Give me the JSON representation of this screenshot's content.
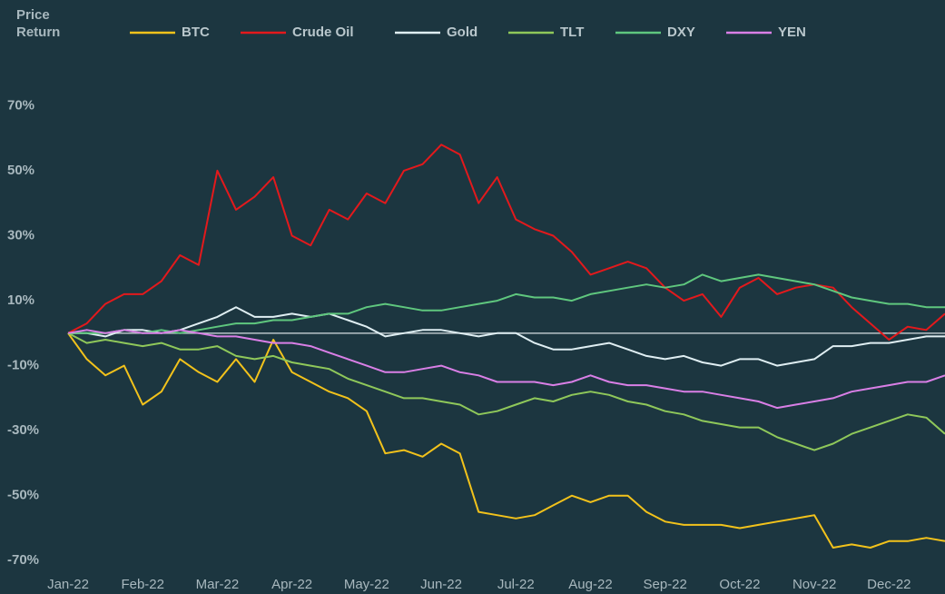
{
  "chart_data": {
    "type": "line",
    "title": "Price Return",
    "categories": [
      "Jan-22",
      null,
      null,
      null,
      "Feb-22",
      null,
      null,
      null,
      "Mar-22",
      null,
      null,
      null,
      "Apr-22",
      null,
      null,
      null,
      "May-22",
      null,
      null,
      null,
      "Jun-22",
      null,
      null,
      null,
      "Jul-22",
      null,
      null,
      null,
      "Aug-22",
      null,
      null,
      null,
      "Sep-22",
      null,
      null,
      null,
      "Oct-22",
      null,
      null,
      null,
      "Nov-22",
      null,
      null,
      null,
      "Dec-22",
      null,
      null,
      null
    ],
    "series": [
      {
        "name": "BTC",
        "color": "#f2c21b",
        "values": [
          0,
          -8,
          -13,
          -10,
          -22,
          -18,
          -8,
          -12,
          -15,
          -8,
          -15,
          -2,
          -12,
          -15,
          -18,
          -20,
          -24,
          -37,
          -36,
          -38,
          -34,
          -37,
          -55,
          -56,
          -57,
          -56,
          -53,
          -50,
          -52,
          -50,
          -50,
          -55,
          -58,
          -59,
          -59,
          -59,
          -60,
          -59,
          -58,
          -57,
          -56,
          -66,
          -65,
          -66,
          -64,
          -64,
          -63,
          -64
        ]
      },
      {
        "name": "Crude Oil",
        "color": "#e3191c",
        "values": [
          0,
          3,
          9,
          12,
          12,
          16,
          24,
          21,
          50,
          38,
          42,
          48,
          30,
          27,
          38,
          35,
          43,
          40,
          50,
          52,
          58,
          55,
          40,
          48,
          35,
          32,
          30,
          25,
          18,
          20,
          22,
          20,
          14,
          10,
          12,
          5,
          14,
          17,
          12,
          14,
          15,
          14,
          8,
          3,
          -2,
          2,
          1,
          6
        ]
      },
      {
        "name": "Gold",
        "color": "#dfeef2",
        "values": [
          0,
          0,
          -1,
          1,
          1,
          0,
          1,
          3,
          5,
          8,
          5,
          5,
          6,
          5,
          6,
          4,
          2,
          -1,
          0,
          1,
          1,
          0,
          -1,
          0,
          0,
          -3,
          -5,
          -5,
          -4,
          -3,
          -5,
          -7,
          -8,
          -7,
          -9,
          -10,
          -8,
          -8,
          -10,
          -9,
          -8,
          -4,
          -4,
          -3,
          -3,
          -2,
          -1,
          -1
        ]
      },
      {
        "name": "TLT",
        "color": "#8fc85a",
        "values": [
          0,
          -3,
          -2,
          -3,
          -4,
          -3,
          -5,
          -5,
          -4,
          -7,
          -8,
          -7,
          -9,
          -10,
          -11,
          -14,
          -16,
          -18,
          -20,
          -20,
          -21,
          -22,
          -25,
          -24,
          -22,
          -20,
          -21,
          -19,
          -18,
          -19,
          -21,
          -22,
          -24,
          -25,
          -27,
          -28,
          -29,
          -29,
          -32,
          -34,
          -36,
          -34,
          -31,
          -29,
          -27,
          -25,
          -26,
          -31
        ]
      },
      {
        "name": "DXY",
        "color": "#5fc77e",
        "values": [
          0,
          0,
          0,
          1,
          0,
          1,
          0,
          1,
          2,
          3,
          3,
          4,
          4,
          5,
          6,
          6,
          8,
          9,
          8,
          7,
          7,
          8,
          9,
          10,
          12,
          11,
          11,
          10,
          12,
          13,
          14,
          15,
          14,
          15,
          18,
          16,
          17,
          18,
          17,
          16,
          15,
          13,
          11,
          10,
          9,
          9,
          8,
          8
        ]
      },
      {
        "name": "YEN",
        "color": "#d97fe6",
        "values": [
          0,
          1,
          0,
          1,
          0,
          0,
          1,
          0,
          -1,
          -1,
          -2,
          -3,
          -3,
          -4,
          -6,
          -8,
          -10,
          -12,
          -12,
          -11,
          -10,
          -12,
          -13,
          -15,
          -15,
          -15,
          -16,
          -15,
          -13,
          -15,
          -16,
          -16,
          -17,
          -18,
          -18,
          -19,
          -20,
          -21,
          -23,
          -22,
          -21,
          -20,
          -18,
          -17,
          -16,
          -15,
          -15,
          -13
        ]
      }
    ],
    "ylim": [
      -73,
      75
    ],
    "yticks": [
      {
        "value": -70,
        "label": "-70%"
      },
      {
        "value": -50,
        "label": "-50%"
      },
      {
        "value": -30,
        "label": "-30%"
      },
      {
        "value": -10,
        "label": "-10%"
      },
      {
        "value": 10,
        "label": "10%"
      },
      {
        "value": 30,
        "label": "30%"
      },
      {
        "value": 50,
        "label": "50%"
      },
      {
        "value": 70,
        "label": "70%"
      }
    ],
    "grid": false
  }
}
